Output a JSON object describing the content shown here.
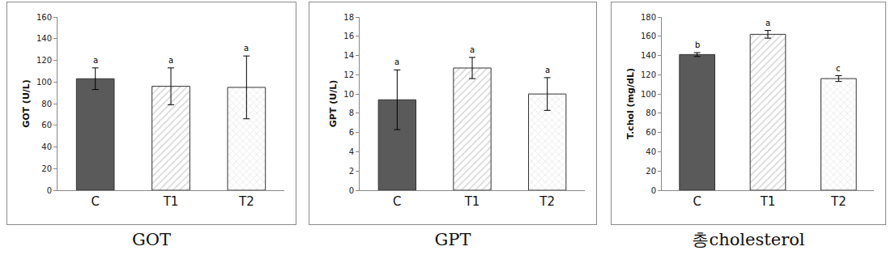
{
  "chart_data": [
    {
      "type": "bar",
      "caption": "GOT",
      "y_label": "GOT (U/L)",
      "categories": [
        "C",
        "T1",
        "T2"
      ],
      "values": [
        103,
        96,
        95
      ],
      "errors": [
        10,
        17,
        29
      ],
      "colors": [
        "#5a5a5a",
        "#d4d4d4",
        "#e6e6e6"
      ],
      "annotations": [
        {
          "x": "C",
          "text": "a"
        },
        {
          "x": "T1",
          "text": "a"
        },
        {
          "x": "T2",
          "text": "a"
        }
      ],
      "ylim": [
        0,
        160
      ],
      "yticks": [
        0,
        20,
        40,
        60,
        80,
        100,
        120,
        140,
        160
      ],
      "grid": false
    },
    {
      "type": "bar",
      "caption": "GPT",
      "y_label": "GPT (U/L)",
      "categories": [
        "C",
        "T1",
        "T2"
      ],
      "values": [
        9.4,
        12.7,
        10
      ],
      "errors": [
        3.1,
        1.1,
        1.7
      ],
      "colors": [
        "#5a5a5a",
        "#d4d4d4",
        "#e6e6e6"
      ],
      "annotations": [
        {
          "x": "C",
          "text": "a"
        },
        {
          "x": "T1",
          "text": "a"
        },
        {
          "x": "T2",
          "text": "a"
        }
      ],
      "ylim": [
        0,
        18
      ],
      "yticks": [
        0,
        2,
        4,
        6,
        8,
        10,
        12,
        14,
        16,
        18
      ],
      "grid": false
    },
    {
      "type": "bar",
      "caption": "총cholesterol",
      "y_label": "T.chol (mg/dL)",
      "categories": [
        "C",
        "T1",
        "T2"
      ],
      "values": [
        141,
        162,
        116
      ],
      "errors": [
        2,
        4,
        3
      ],
      "colors": [
        "#5a5a5a",
        "#d4d4d4",
        "#e6e6e6"
      ],
      "annotations": [
        {
          "x": "C",
          "text": "b"
        },
        {
          "x": "T1",
          "text": "a"
        },
        {
          "x": "T2",
          "text": "c"
        }
      ],
      "ylim": [
        0,
        180
      ],
      "yticks": [
        0,
        20,
        40,
        60,
        80,
        100,
        120,
        140,
        160,
        180
      ],
      "grid": false
    }
  ]
}
